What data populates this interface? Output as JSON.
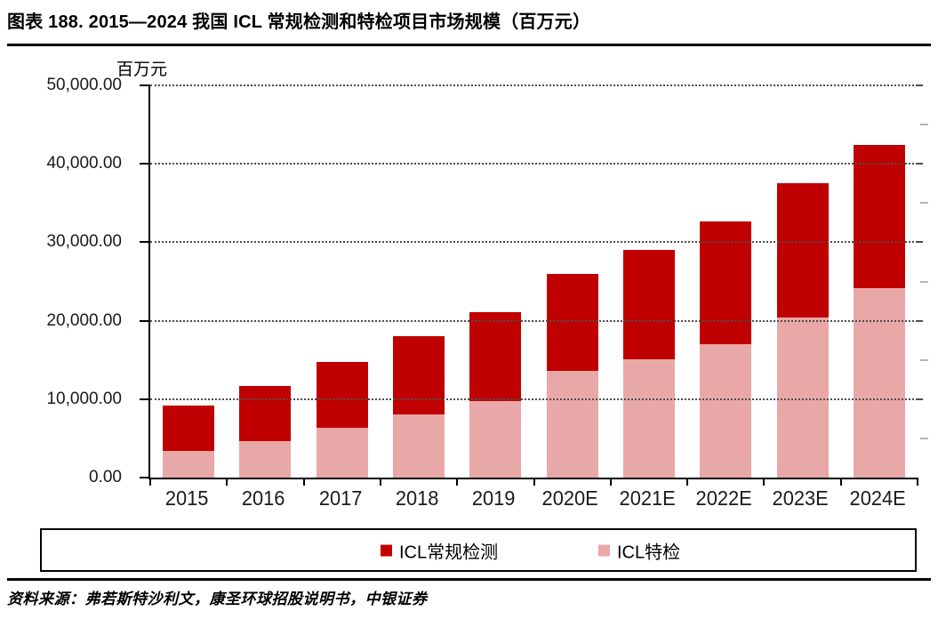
{
  "title": "图表 188. 2015—2024 我国 ICL 常规检测和特检项目市场规模（百万元）",
  "source": "资料来源：弗若斯特沙利文，康圣环球招股说明书，中银证券",
  "chart_data": {
    "type": "bar",
    "stacked": true,
    "title": "图表 188. 2015—2024 我国 ICL 常规检测和特检项目市场规模（百万元）",
    "unit_label": "百万元",
    "xlabel": "",
    "ylabel": "百万元",
    "ylim": [
      0,
      50000
    ],
    "ytick_interval": 10000,
    "ytick_labels": [
      "50,000.00",
      "40,000.00",
      "30,000.00",
      "20,000.00",
      "10,000.00",
      "0.00"
    ],
    "grid": "horizontal-dotted",
    "legend_position": "bottom-boxed",
    "categories": [
      "2015",
      "2016",
      "2017",
      "2018",
      "2019",
      "2020E",
      "2021E",
      "2022E",
      "2023E",
      "2024E"
    ],
    "series": [
      {
        "name": "ICL特检",
        "stack_position": "bottom",
        "color": "#E9A8A8",
        "values": [
          3400,
          4700,
          6400,
          8100,
          9700,
          13600,
          15100,
          17000,
          20400,
          24100
        ]
      },
      {
        "name": "ICL常规检测",
        "stack_position": "top",
        "color": "#C00000",
        "values": [
          5800,
          7000,
          8300,
          9900,
          11400,
          12400,
          13900,
          15700,
          17100,
          18300
        ]
      }
    ],
    "totals": [
      9200,
      11700,
      14700,
      18000,
      21100,
      26000,
      29000,
      32700,
      37500,
      42400
    ],
    "legend": [
      {
        "label": "ICL常规检测",
        "color": "#C00000"
      },
      {
        "label": "ICL特检",
        "color": "#E9A8A8"
      }
    ]
  },
  "colors": {
    "regular_testing": "#C00000",
    "special_testing": "#E9A8A8",
    "axis": "#000000",
    "gridline": "#4d4d4d"
  }
}
